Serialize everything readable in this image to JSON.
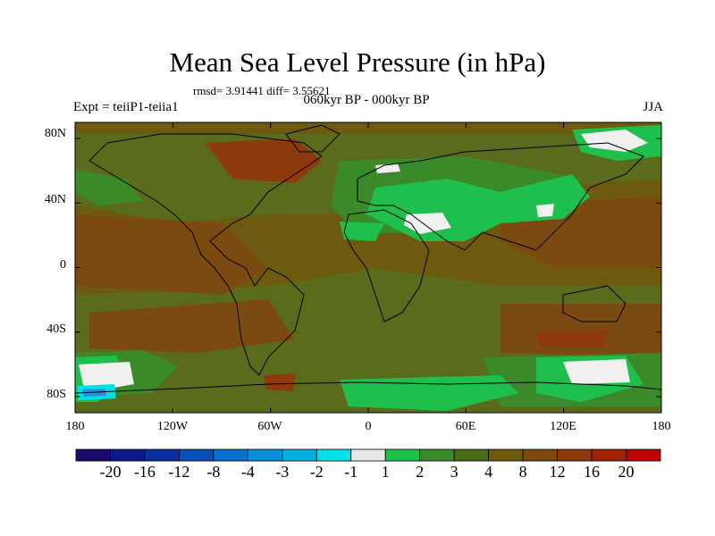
{
  "header": {
    "title": "Mean Sea Level Pressure (in hPa)",
    "stats": "rmsd= 3.91441 diff= 3.55621",
    "experiment": "Expt = teiiP1-teiia1",
    "period": "060kyr BP - 000kyr BP",
    "season": "JJA"
  },
  "map": {
    "y_ticks": [
      "80N",
      "40N",
      "0",
      "40S",
      "80S"
    ],
    "x_ticks": [
      "180",
      "120W",
      "60W",
      "0",
      "60E",
      "120E",
      "180"
    ],
    "fill_colors": {
      "base": "#6e5a0e",
      "olive": "#5a6b1c",
      "brown": "#7b4a10",
      "reddish": "#8f3a0c",
      "green": "#3a8a2a",
      "bright_green": "#1fbf4d",
      "white": "#f0f0f0",
      "cyan": "#00e0e8",
      "blue": "#2a8fd6"
    }
  },
  "colorbar": {
    "labels": [
      "-20",
      "-16",
      "-12",
      "-8",
      "-4",
      "-3",
      "-2",
      "-1",
      "1",
      "2",
      "3",
      "4",
      "8",
      "12",
      "16",
      "20"
    ],
    "colors": [
      "#1a0a6a",
      "#0a1a8a",
      "#0a2fa0",
      "#0a4fb8",
      "#0a6fcc",
      "#0a90d8",
      "#00b0e0",
      "#00e0e8",
      "#e8e8e8",
      "#1fbf4d",
      "#3a8a2a",
      "#4a6b18",
      "#6e5a0e",
      "#7b4a10",
      "#8f3a0c",
      "#a02008",
      "#c00000"
    ]
  }
}
